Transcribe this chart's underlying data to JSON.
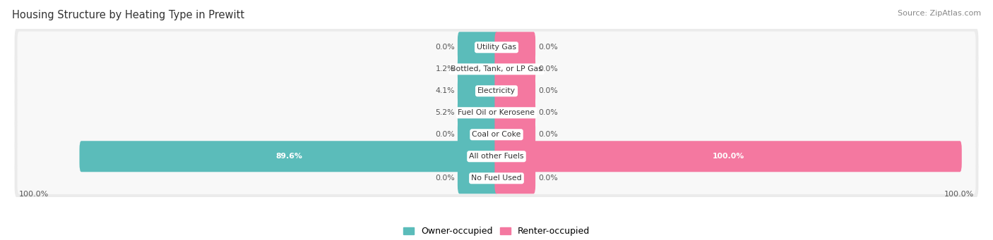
{
  "title": "Housing Structure by Heating Type in Prewitt",
  "source": "Source: ZipAtlas.com",
  "categories": [
    "Utility Gas",
    "Bottled, Tank, or LP Gas",
    "Electricity",
    "Fuel Oil or Kerosene",
    "Coal or Coke",
    "All other Fuels",
    "No Fuel Used"
  ],
  "owner_values": [
    0.0,
    1.2,
    4.1,
    5.2,
    0.0,
    89.6,
    0.0
  ],
  "renter_values": [
    0.0,
    0.0,
    0.0,
    0.0,
    0.0,
    100.0,
    0.0
  ],
  "owner_color": "#5bbcba",
  "renter_color": "#f478a0",
  "owner_label": "Owner-occupied",
  "renter_label": "Renter-occupied",
  "title_fontsize": 10.5,
  "source_fontsize": 8,
  "min_stub": 8.0,
  "xlim": 100
}
